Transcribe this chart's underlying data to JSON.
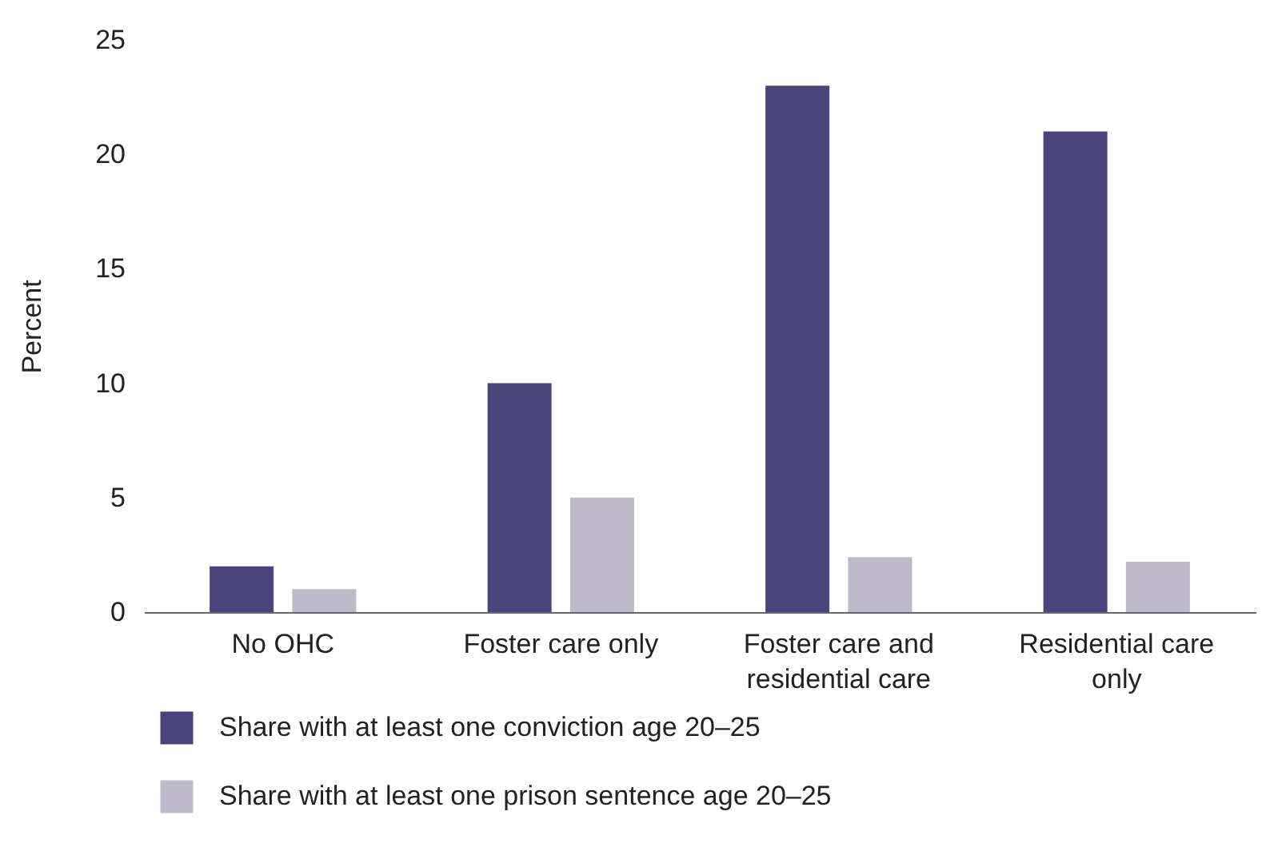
{
  "chart_data": {
    "type": "bar",
    "ylabel": "Percent",
    "categories": [
      "No OHC",
      "Foster care only",
      "Foster care and residential care",
      "Residential care only"
    ],
    "series": [
      {
        "name": "Share with at least one conviction age 20–25",
        "color": "#4a447c",
        "values": [
          2,
          10,
          23,
          21
        ]
      },
      {
        "name": "Share with at least one prison sentence age 20–25",
        "color": "#bebaca",
        "values": [
          1,
          5,
          2.4,
          2.2
        ]
      }
    ],
    "ylim": [
      0,
      25
    ],
    "yticks": [
      0,
      5,
      10,
      15,
      20,
      25
    ],
    "grid": false,
    "legend": "bottom"
  }
}
